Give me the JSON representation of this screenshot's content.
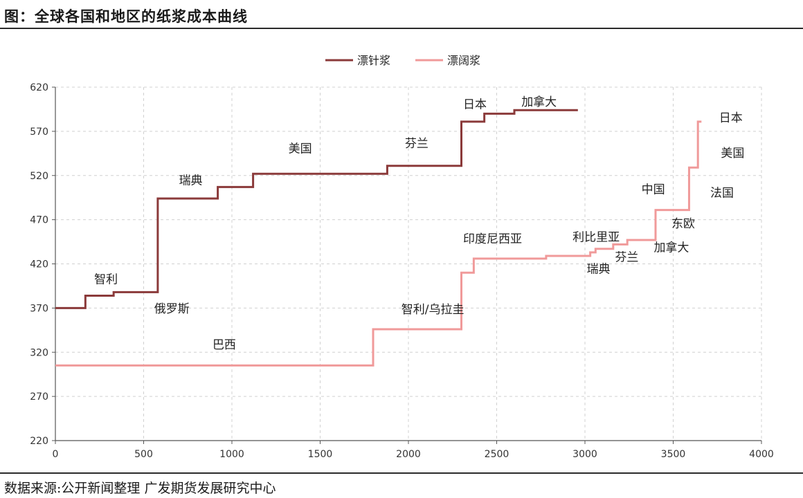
{
  "header": {
    "title": "图：全球各国和地区的纸浆成本曲线"
  },
  "footer": {
    "source": "数据来源:公开新闻整理   广发期货发展研究中心"
  },
  "chart_data": {
    "type": "line",
    "title": "图：全球各国和地区的纸浆成本曲线",
    "xlabel": "",
    "ylabel": "",
    "xlim": [
      0,
      4000
    ],
    "ylim": [
      220,
      620
    ],
    "xticks": [
      0,
      500,
      1000,
      1500,
      2000,
      2500,
      3000,
      3500,
      4000
    ],
    "yticks": [
      220,
      270,
      320,
      370,
      420,
      470,
      520,
      570,
      620
    ],
    "grid": true,
    "legend": "top-center",
    "series": [
      {
        "name": "漂针浆",
        "color": "#8b3a3a",
        "step": true,
        "x": [
          0,
          170,
          330,
          580,
          920,
          1120,
          1880,
          2300,
          2430,
          2600,
          2960
        ],
        "y": [
          370,
          384,
          388,
          494,
          507,
          522,
          531,
          581,
          590,
          594,
          594
        ]
      },
      {
        "name": "漂阔浆",
        "color": "#f09a9a",
        "step": true,
        "x": [
          0,
          1800,
          2300,
          2370,
          2780,
          3030,
          3060,
          3160,
          3240,
          3400,
          3590,
          3640,
          3660
        ],
        "y": [
          305,
          346,
          410,
          426,
          429,
          433,
          437,
          442,
          447,
          481,
          529,
          581,
          581
        ]
      }
    ],
    "annotations": [
      {
        "text": "智利",
        "series": 0,
        "x": 220,
        "y": 398
      },
      {
        "text": "俄罗斯",
        "series": 0,
        "x": 560,
        "y": 365
      },
      {
        "text": "瑞典",
        "series": 0,
        "x": 700,
        "y": 510
      },
      {
        "text": "美国",
        "series": 0,
        "x": 1320,
        "y": 546
      },
      {
        "text": "芬兰",
        "series": 0,
        "x": 1980,
        "y": 552
      },
      {
        "text": "日本",
        "series": 0,
        "x": 2310,
        "y": 596
      },
      {
        "text": "加拿大",
        "series": 0,
        "x": 2640,
        "y": 599
      },
      {
        "text": "巴西",
        "series": 1,
        "x": 890,
        "y": 324
      },
      {
        "text": "智利/乌拉圭",
        "series": 1,
        "x": 1960,
        "y": 364
      },
      {
        "text": "印度尼西亚",
        "series": 1,
        "x": 2310,
        "y": 444
      },
      {
        "text": "利比里亚",
        "series": 1,
        "x": 2930,
        "y": 446
      },
      {
        "text": "瑞典",
        "series": 1,
        "x": 3010,
        "y": 410
      },
      {
        "text": "芬兰",
        "series": 1,
        "x": 3170,
        "y": 423
      },
      {
        "text": "加拿大",
        "series": 1,
        "x": 3390,
        "y": 434
      },
      {
        "text": "东欧",
        "series": 1,
        "x": 3490,
        "y": 461
      },
      {
        "text": "中国",
        "series": 1,
        "x": 3320,
        "y": 500
      },
      {
        "text": "法国",
        "series": 1,
        "x": 3710,
        "y": 496
      },
      {
        "text": "美国",
        "series": 1,
        "x": 3770,
        "y": 541
      },
      {
        "text": "日本",
        "series": 1,
        "x": 3760,
        "y": 581
      }
    ]
  }
}
